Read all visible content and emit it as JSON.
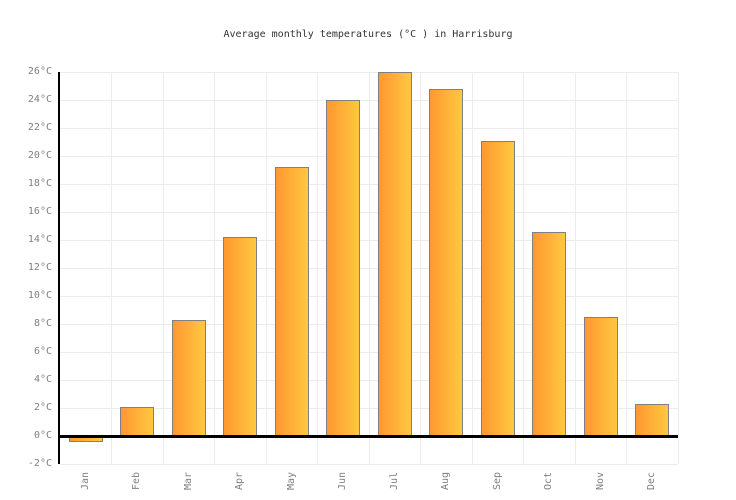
{
  "title": "Average monthly temperatures (°C ) in Harrisburg",
  "chart_data": {
    "type": "bar",
    "title": "Average monthly temperatures (°C ) in Harrisburg",
    "categories": [
      "Jan",
      "Feb",
      "Mar",
      "Apr",
      "May",
      "Jun",
      "Jul",
      "Aug",
      "Sep",
      "Oct",
      "Nov",
      "Dec"
    ],
    "values": [
      -0.4,
      2.1,
      8.3,
      14.2,
      19.2,
      24.0,
      26.0,
      24.8,
      21.1,
      14.6,
      8.5,
      2.3
    ],
    "xlabel": "",
    "ylabel": "",
    "ylim": [
      -2,
      26
    ],
    "ytick_step": 2,
    "ytick_labels": [
      "26°C",
      "24°C",
      "22°C",
      "20°C",
      "18°C",
      "16°C",
      "14°C",
      "12°C",
      "10°C",
      "8°C",
      "6°C",
      "4°C",
      "2°C",
      "0°C",
      "-2°C"
    ],
    "grid": true,
    "legend_position": "none",
    "colors": {
      "bar_gradient_left": "#FF9830",
      "bar_gradient_right": "#FFC840",
      "bar_border": "#808080",
      "axis": "#000000",
      "grid_line": "#ececec",
      "tick_label": "#808080",
      "title_text": "#333333",
      "background": "#ffffff"
    }
  }
}
